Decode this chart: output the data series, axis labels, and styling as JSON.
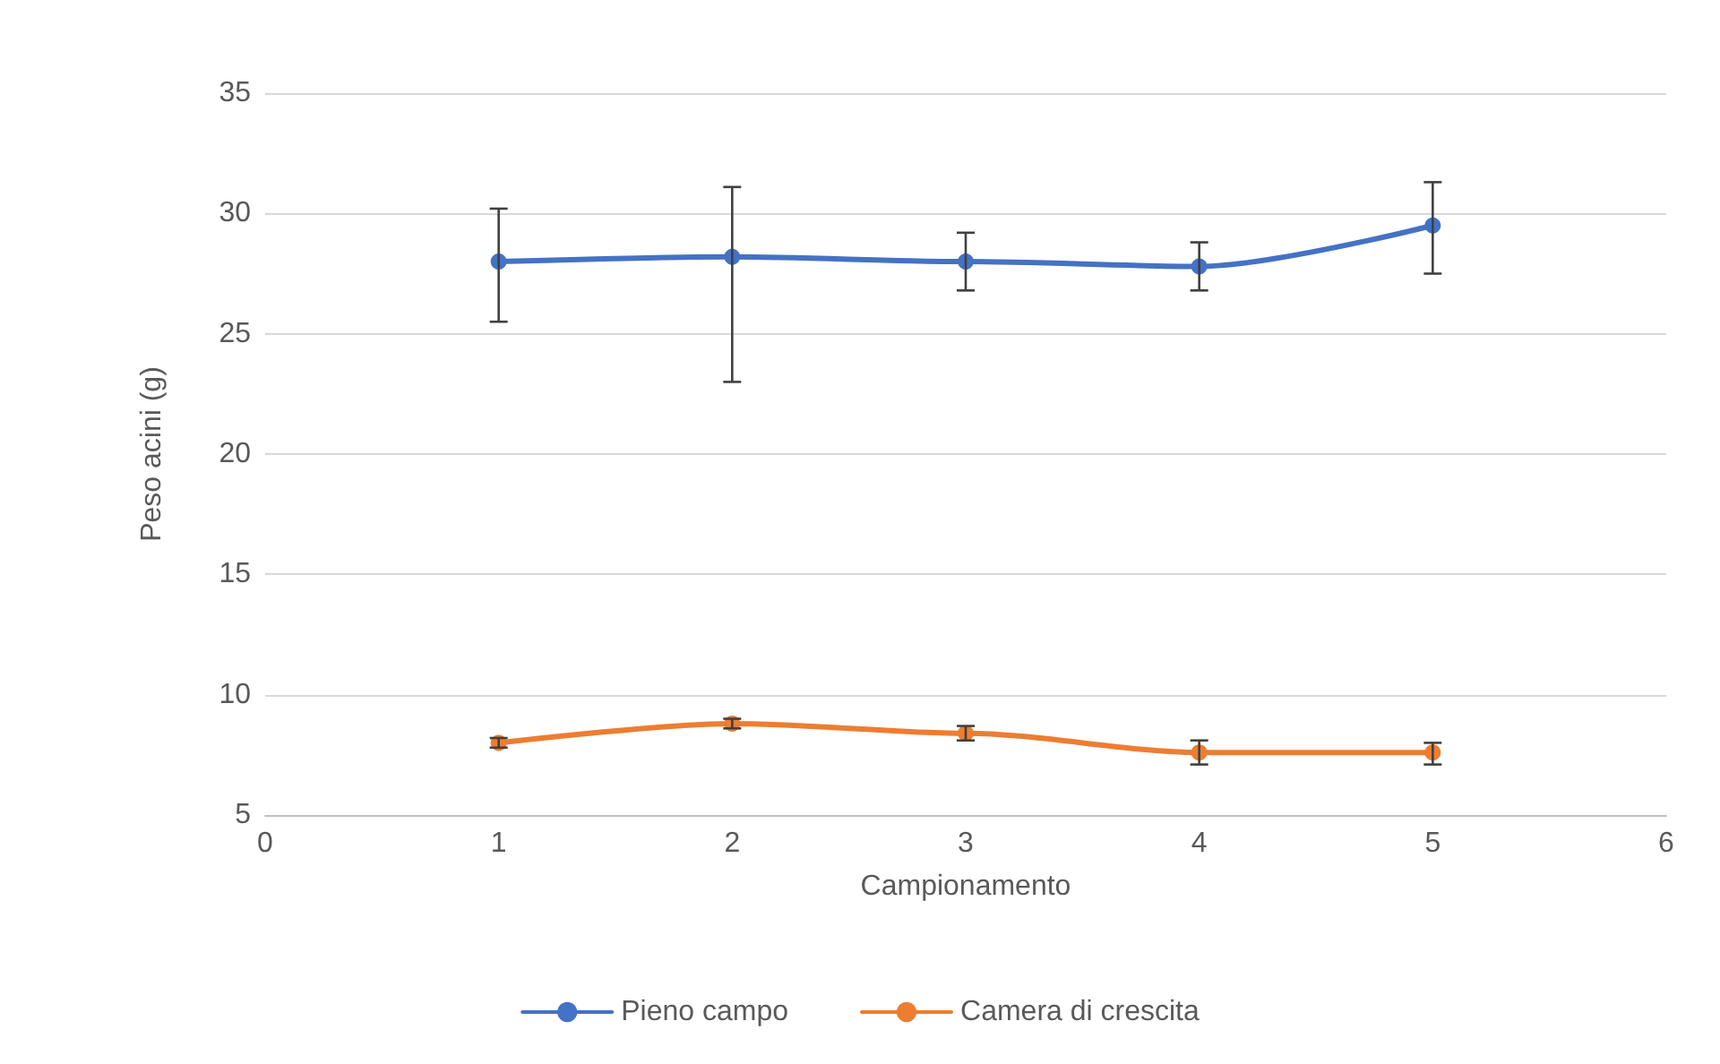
{
  "chart_data": {
    "type": "line",
    "xlabel": "Campionamento",
    "ylabel": "Peso acini (g)",
    "x": [
      1,
      2,
      3,
      4,
      5
    ],
    "series": [
      {
        "name": "Pieno campo",
        "color": "#4472c4",
        "values": [
          28.0,
          28.2,
          28.0,
          27.8,
          29.5
        ],
        "errors": [
          [
            25.5,
            30.2
          ],
          [
            23.0,
            31.1
          ],
          [
            26.8,
            29.2
          ],
          [
            26.8,
            28.8
          ],
          [
            27.5,
            31.3
          ]
        ]
      },
      {
        "name": "Camera di crescita",
        "color": "#ed7d31",
        "values": [
          8.0,
          8.8,
          8.4,
          7.6,
          7.6
        ],
        "errors": [
          [
            7.8,
            8.2
          ],
          [
            8.6,
            9.0
          ],
          [
            8.1,
            8.7
          ],
          [
            7.1,
            8.1
          ],
          [
            7.1,
            8.0
          ]
        ]
      }
    ],
    "xlim": [
      0,
      6
    ],
    "xticks": [
      0,
      1,
      2,
      3,
      4,
      5,
      6
    ],
    "ylim": [
      5,
      35
    ],
    "yticks": [
      5,
      10,
      15,
      20,
      25,
      30,
      35
    ],
    "grid": "y",
    "legend": "bottom",
    "marker": "circle",
    "line_style": "solid"
  }
}
